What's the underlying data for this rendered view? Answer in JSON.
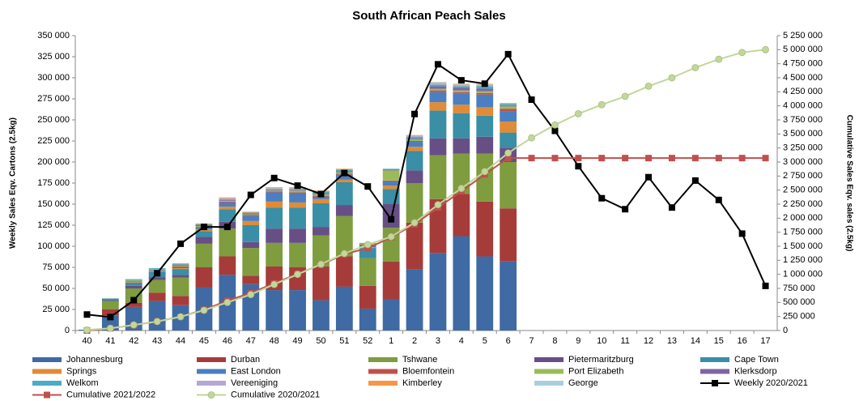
{
  "chart_data": {
    "type": "bar",
    "title": "South African Peach Sales",
    "y_label": "Weekly Sales Eqv. Cartons (2.5kg)",
    "y2_label": "Cumulative Sales Eqv. sales (2.5kg)",
    "categories": [
      "40",
      "41",
      "42",
      "43",
      "44",
      "45",
      "46",
      "47",
      "48",
      "49",
      "50",
      "51",
      "52",
      "1",
      "2",
      "3",
      "4",
      "5",
      "6",
      "7",
      "8",
      "9",
      "10",
      "11",
      "12",
      "13",
      "14",
      "15",
      "16",
      "17"
    ],
    "ylim": [
      0,
      350000
    ],
    "yticks": [
      0,
      {
        "value": 25000,
        "label": "25 000"
      },
      {
        "value": 50000,
        "label": "50 000"
      },
      {
        "value": 75000,
        "label": "75 000"
      },
      {
        "value": 100000,
        "label": "100 000"
      },
      {
        "value": 125000,
        "label": "125 000"
      },
      {
        "value": 150000,
        "label": "150 000"
      },
      {
        "value": 175000,
        "label": "175 000"
      },
      {
        "value": 200000,
        "label": "200 000"
      },
      {
        "value": 225000,
        "label": "225 000"
      },
      {
        "value": 250000,
        "label": "250 000"
      },
      {
        "value": 275000,
        "label": "275 000"
      },
      {
        "value": 300000,
        "label": "300 000"
      },
      {
        "value": 325000,
        "label": "325 000"
      },
      {
        "value": 350000,
        "label": "350 000"
      }
    ],
    "y2lim": [
      0,
      5250000
    ],
    "y2ticks": [
      0,
      {
        "value": 250000,
        "label": "250 000"
      },
      {
        "value": 500000,
        "label": "500 000"
      },
      {
        "value": 750000,
        "label": "750 000"
      },
      {
        "value": 1000000,
        "label": "1 000 000"
      },
      {
        "value": 1250000,
        "label": "1 250 000"
      },
      {
        "value": 1500000,
        "label": "1 500 000"
      },
      {
        "value": 1750000,
        "label": "1 750 000"
      },
      {
        "value": 2000000,
        "label": "2 000 000"
      },
      {
        "value": 2250000,
        "label": "2 250 000"
      },
      {
        "value": 2500000,
        "label": "2 500 000"
      },
      {
        "value": 2750000,
        "label": "2 750 000"
      },
      {
        "value": 3000000,
        "label": "3 000 000"
      },
      {
        "value": 3250000,
        "label": "3 250 000"
      },
      {
        "value": 3500000,
        "label": "3 500 000"
      },
      {
        "value": 3750000,
        "label": "3 750 000"
      },
      {
        "value": 4000000,
        "label": "4 000 000"
      },
      {
        "value": 4250000,
        "label": "4 250 000"
      },
      {
        "value": 4500000,
        "label": "4 500 000"
      },
      {
        "value": 4750000,
        "label": "4 750 000"
      },
      {
        "value": 5000000,
        "label": "5 000 000"
      },
      {
        "value": 5250000,
        "label": "5 250 000"
      }
    ],
    "stacked": true,
    "grid": false,
    "legend": "bottom",
    "series": [
      {
        "name": "Johannesburg",
        "color": "#3f6aa3",
        "values": [
          1000,
          18000,
          28000,
          35000,
          30000,
          51000,
          66000,
          55000,
          48000,
          48000,
          36000,
          52000,
          26000,
          37000,
          73000,
          92000,
          112000,
          88000,
          82000,
          null,
          null,
          null,
          null,
          null,
          null,
          null,
          null,
          null,
          null,
          null
        ]
      },
      {
        "name": "Durban",
        "color": "#a63c3a",
        "values": [
          0,
          7000,
          5000,
          10000,
          11000,
          24000,
          22000,
          10000,
          28000,
          27000,
          40000,
          36000,
          27000,
          45000,
          55000,
          64000,
          50000,
          65000,
          63000,
          null,
          null,
          null,
          null,
          null,
          null,
          null,
          null,
          null,
          null,
          null
        ]
      },
      {
        "name": "Tshwane",
        "color": "#7f9c3f",
        "values": [
          0,
          10000,
          17000,
          15000,
          22000,
          28000,
          33000,
          33000,
          28000,
          29000,
          37000,
          48000,
          33000,
          40000,
          47000,
          52000,
          48000,
          57000,
          55000,
          null,
          null,
          null,
          null,
          null,
          null,
          null,
          null,
          null,
          null,
          null
        ]
      },
      {
        "name": "Pietermaritzburg",
        "color": "#674f86",
        "values": [
          0,
          1000,
          3000,
          3000,
          3000,
          8000,
          8000,
          7000,
          17000,
          17000,
          10000,
          13000,
          0,
          28000,
          15000,
          20000,
          18000,
          20000,
          17000,
          null,
          null,
          null,
          null,
          null,
          null,
          null,
          null,
          null,
          null,
          null
        ]
      },
      {
        "name": "Cape Town",
        "color": "#3a8ea5",
        "values": [
          0,
          2000,
          4000,
          7000,
          7000,
          7000,
          15000,
          20000,
          25000,
          25000,
          28000,
          27000,
          12000,
          18000,
          23000,
          33000,
          30000,
          25000,
          18000,
          null,
          null,
          null,
          null,
          null,
          null,
          null,
          null,
          null,
          null,
          null
        ]
      },
      {
        "name": "Springs",
        "color": "#e08b36",
        "values": [
          0,
          0,
          1000,
          1000,
          1000,
          2000,
          3000,
          5000,
          7000,
          6000,
          5000,
          3000,
          1000,
          4000,
          5000,
          10000,
          10000,
          10000,
          13000,
          null,
          null,
          null,
          null,
          null,
          null,
          null,
          null,
          null,
          null,
          null
        ]
      },
      {
        "name": "East London",
        "color": "#4a7fc1",
        "values": [
          0,
          0,
          1000,
          1000,
          1000,
          2000,
          5000,
          6000,
          11000,
          11000,
          3000,
          6000,
          2000,
          5000,
          6000,
          12000,
          13000,
          15000,
          12000,
          null,
          null,
          null,
          null,
          null,
          null,
          null,
          null,
          null,
          null,
          null
        ]
      },
      {
        "name": "Bloemfontein",
        "color": "#c0504d",
        "values": [
          0,
          0,
          0,
          0,
          1000,
          1000,
          1000,
          1000,
          1000,
          1000,
          1000,
          1000,
          1000,
          1000,
          1000,
          2000,
          2000,
          2000,
          3000,
          null,
          null,
          null,
          null,
          null,
          null,
          null,
          null,
          null,
          null,
          null
        ]
      },
      {
        "name": "Port Elizabeth",
        "color": "#9bbb59",
        "values": [
          0,
          0,
          1000,
          1000,
          1000,
          1000,
          1000,
          1000,
          1000,
          2000,
          2000,
          2000,
          1000,
          12000,
          2000,
          2000,
          2000,
          2000,
          3000,
          null,
          null,
          null,
          null,
          null,
          null,
          null,
          null,
          null,
          null,
          null
        ]
      },
      {
        "name": "Klerksdorp",
        "color": "#8064a2",
        "values": [
          0,
          0,
          0,
          0,
          1000,
          1000,
          1000,
          1000,
          1000,
          1000,
          1000,
          1000,
          0,
          1000,
          1000,
          3000,
          3000,
          3000,
          1000,
          null,
          null,
          null,
          null,
          null,
          null,
          null,
          null,
          null,
          null,
          null
        ]
      },
      {
        "name": "Welkom",
        "color": "#4bacc6",
        "values": [
          0,
          0,
          1000,
          1000,
          1000,
          1000,
          1000,
          1000,
          1000,
          1000,
          2000,
          2000,
          1000,
          1000,
          2000,
          2000,
          2000,
          3000,
          2000,
          null,
          null,
          null,
          null,
          null,
          null,
          null,
          null,
          null,
          null,
          null
        ]
      },
      {
        "name": "Vereeniging",
        "color": "#b3a8cf",
        "values": [
          0,
          0,
          0,
          0,
          0,
          0,
          1000,
          0,
          1000,
          1000,
          0,
          0,
          0,
          0,
          1000,
          1000,
          1000,
          1000,
          0,
          null,
          null,
          null,
          null,
          null,
          null,
          null,
          null,
          null,
          null,
          null
        ]
      },
      {
        "name": "Kimberley",
        "color": "#f79646",
        "values": [
          0,
          0,
          0,
          0,
          1000,
          1000,
          1000,
          1000,
          1000,
          1000,
          1000,
          1000,
          0,
          0,
          1000,
          1000,
          1000,
          1000,
          1000,
          null,
          null,
          null,
          null,
          null,
          null,
          null,
          null,
          null,
          null,
          null
        ]
      },
      {
        "name": "George",
        "color": "#a9cfdc",
        "values": [
          0,
          0,
          0,
          0,
          0,
          0,
          0,
          0,
          0,
          0,
          0,
          0,
          0,
          0,
          0,
          1000,
          1000,
          1000,
          0,
          null,
          null,
          null,
          null,
          null,
          null,
          null,
          null,
          null,
          null,
          null
        ]
      },
      {
        "name": "Weekly 2020/2021",
        "color": "#000000",
        "type": "line",
        "marker": "square",
        "values": [
          19000,
          16000,
          36000,
          68000,
          103000,
          123000,
          123000,
          161000,
          181000,
          172000,
          162000,
          187000,
          171000,
          132000,
          257000,
          316000,
          297000,
          293000,
          328000,
          274000,
          237000,
          195000,
          157000,
          144000,
          182000,
          146000,
          178000,
          155000,
          115000,
          53000
        ]
      },
      {
        "name": "Cumulative 2021/2022",
        "color": "#c0504d",
        "type": "line",
        "marker": "square",
        "axis": "y2",
        "values": [
          0,
          40000,
          95000,
          165000,
          245000,
          370000,
          530000,
          670000,
          840000,
          1010000,
          1170000,
          1360000,
          1465000,
          1660000,
          1890000,
          2190000,
          2480000,
          2780000,
          3070000,
          3070000,
          3070000,
          3070000,
          3070000,
          3070000,
          3070000,
          3070000,
          3070000,
          3070000,
          3070000,
          3070000
        ]
      },
      {
        "name": "Cumulative 2020/2021",
        "color": "#c3d69b",
        "type": "line",
        "marker": "circle",
        "axis": "y2",
        "values": [
          10000,
          40000,
          100000,
          160000,
          245000,
          360000,
          500000,
          640000,
          820000,
          1000000,
          1180000,
          1370000,
          1530000,
          1670000,
          1920000,
          2240000,
          2530000,
          2830000,
          3160000,
          3430000,
          3660000,
          3860000,
          4020000,
          4170000,
          4350000,
          4500000,
          4680000,
          4830000,
          4950000,
          5000000
        ]
      }
    ]
  }
}
